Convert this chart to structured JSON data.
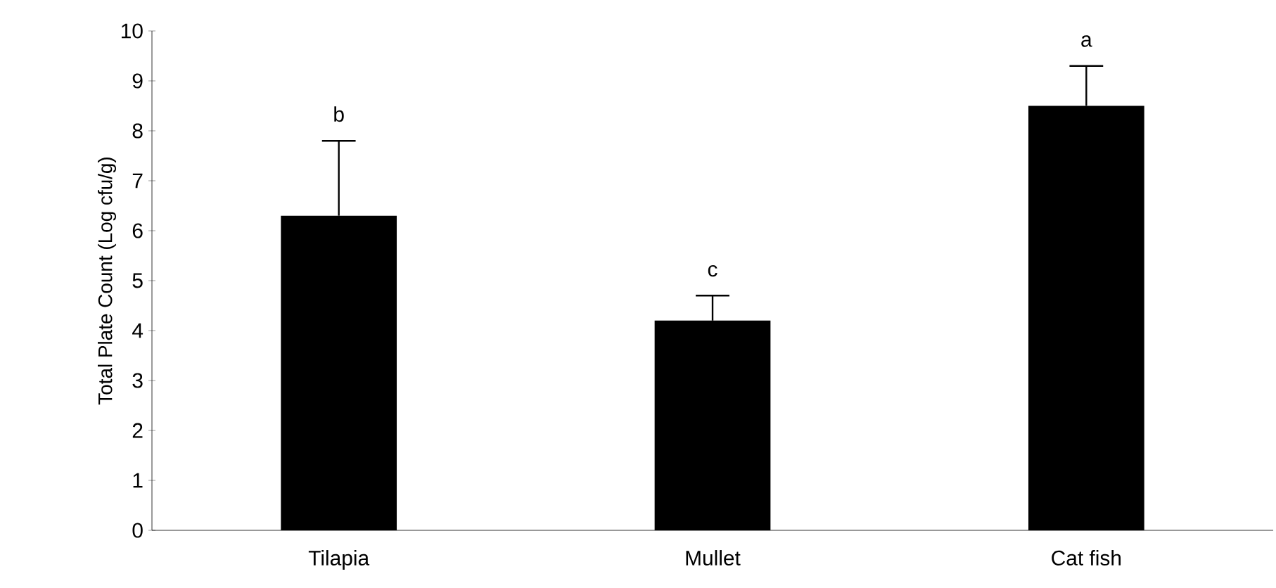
{
  "chart_data": {
    "type": "bar",
    "ylabel": "Total Plate Count (Log cfu/g)",
    "categories": [
      "Tilapia",
      "Mullet",
      "Cat fish"
    ],
    "values": [
      6.3,
      4.2,
      8.5
    ],
    "errors": [
      [
        6.3,
        7.8
      ],
      [
        4.2,
        4.7
      ],
      [
        8.5,
        9.3
      ]
    ],
    "color": "#000000",
    "ylim": [
      0,
      10
    ],
    "yticks": [
      0,
      1,
      2,
      3,
      4,
      5,
      6,
      7,
      8,
      9,
      10
    ],
    "grid": false,
    "annotations": [
      "b",
      "c",
      "a"
    ]
  }
}
